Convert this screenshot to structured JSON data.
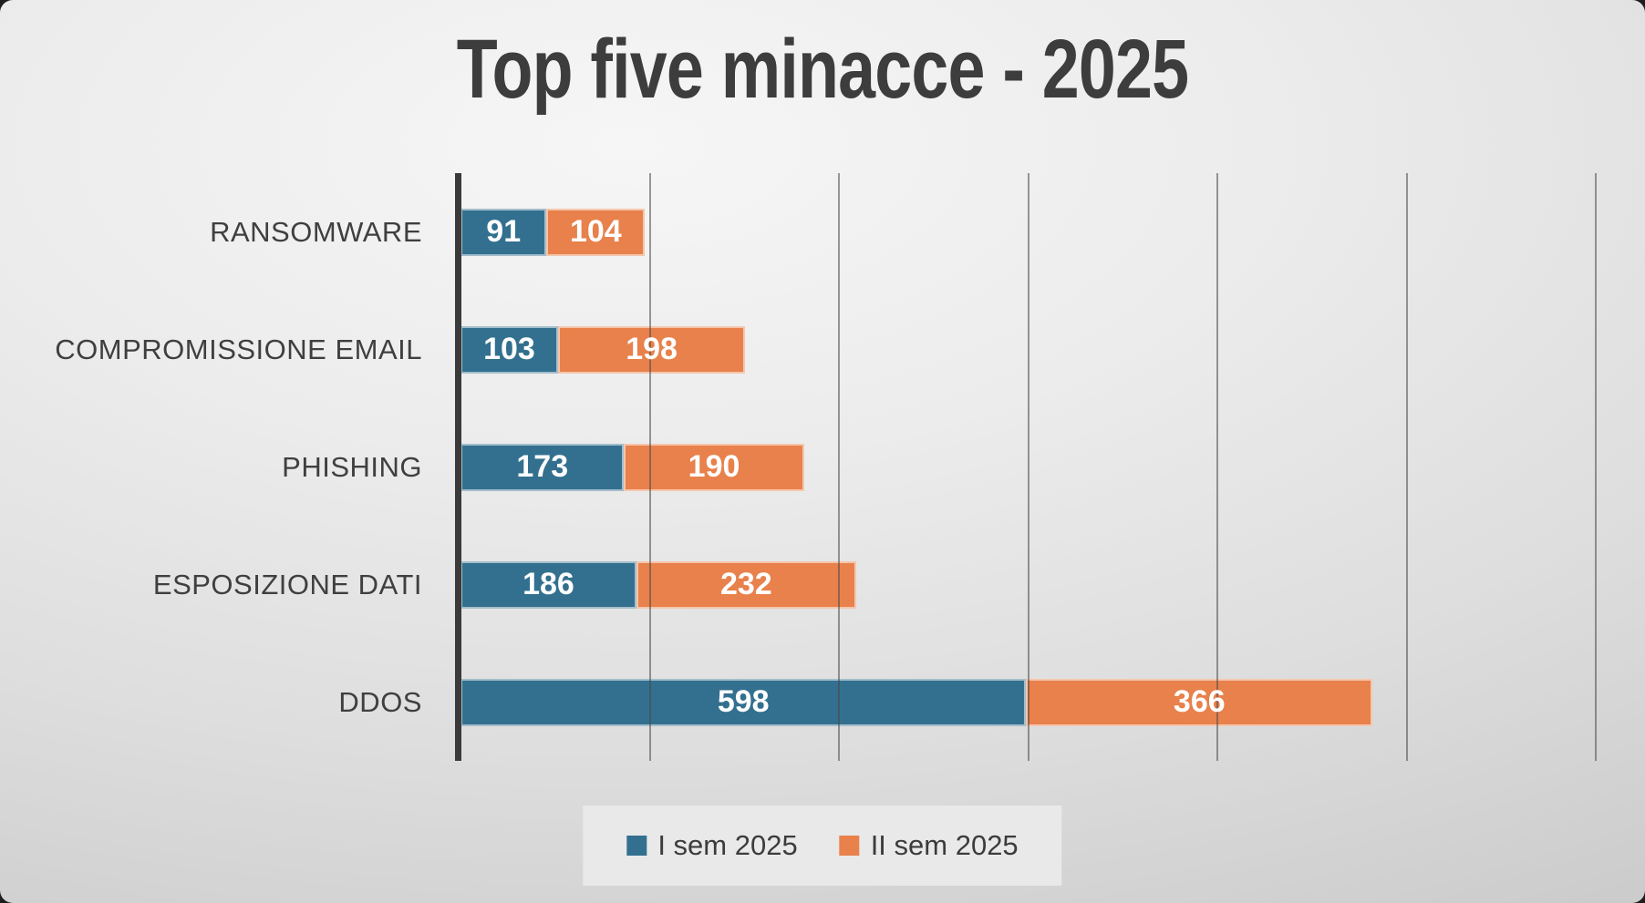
{
  "slide": {
    "title": "Top five minacce - 2025"
  },
  "chart_data": {
    "type": "bar",
    "orientation": "horizontal",
    "stacked": true,
    "title": "Top five minacce - 2025",
    "categories": [
      "RANSOMWARE",
      "COMPROMISSIONE EMAIL",
      "PHISHING",
      "ESPOSIZIONE DATI",
      "DDOS"
    ],
    "series": [
      {
        "name": "I sem 2025",
        "color": "#33708F",
        "values": [
          91,
          103,
          173,
          186,
          598
        ]
      },
      {
        "name": "II sem 2025",
        "color": "#E8814B",
        "values": [
          104,
          198,
          190,
          232,
          366
        ]
      }
    ],
    "xlim": [
      0,
      1200
    ],
    "gridline_interval": 200,
    "grid": true,
    "data_labels": true,
    "legend_position": "bottom"
  },
  "legend": {
    "items": [
      {
        "label": "I sem 2025",
        "color": "#33708F"
      },
      {
        "label": "II sem 2025",
        "color": "#E8814B"
      }
    ]
  },
  "colors": {
    "series1": "#33708F",
    "series2": "#E8814B",
    "title_text": "#3D3D3D",
    "category_text": "#3F3F3F",
    "value_text": "#FFFFFF",
    "axis_line": "#3A3A3A",
    "gridline": "#8C8C8C",
    "legend_background": "#E9E9E9",
    "background_light": "#F6F6F6",
    "background_dark": "#C3C3C3"
  }
}
